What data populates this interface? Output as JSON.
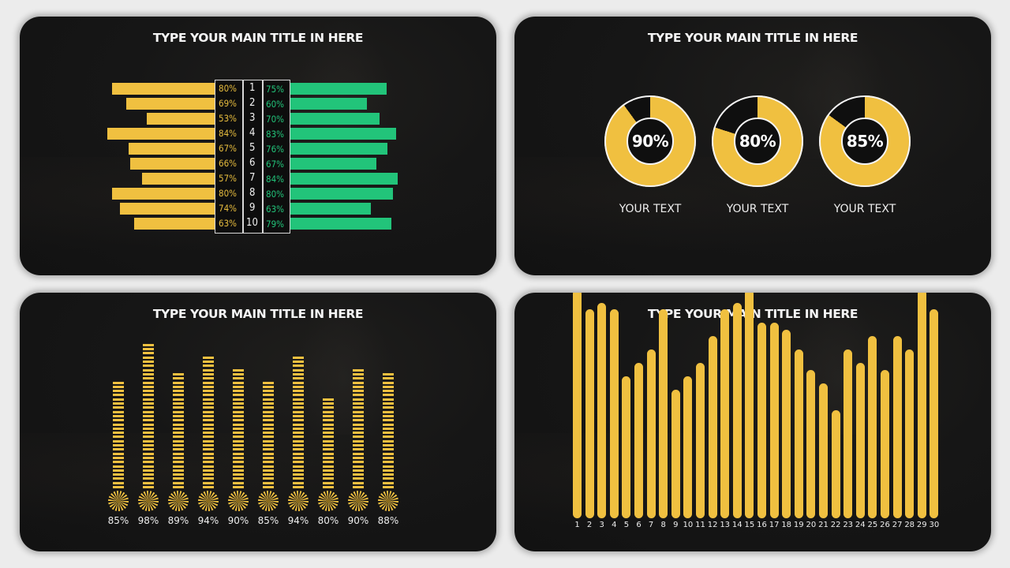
{
  "panels": [
    {
      "title": "TYPE YOUR MAIN TITLE IN HERE"
    },
    {
      "title": "TYPE YOUR MAIN TITLE IN HERE"
    },
    {
      "title": "TYPE YOUR MAIN TITLE IN HERE"
    },
    {
      "title": "TYPE YOUR MAIN TITLE IN HERE"
    }
  ],
  "colors": {
    "yellow": "#f0c040",
    "green": "#22c47a",
    "white": "#f4f4f4",
    "panel_bg": "#141414",
    "page_bg": "#ececec"
  },
  "chart_data": [
    {
      "type": "bar",
      "orientation": "horizontal-butterfly",
      "title": "TYPE YOUR MAIN TITLE IN HERE",
      "categories": [
        "1",
        "2",
        "3",
        "4",
        "5",
        "6",
        "7",
        "8",
        "9",
        "10"
      ],
      "series": [
        {
          "name": "left",
          "color": "#f0c040",
          "values": [
            80,
            69,
            53,
            84,
            67,
            66,
            57,
            80,
            74,
            63
          ],
          "labels": [
            "80%",
            "69%",
            "53%",
            "84%",
            "67%",
            "66%",
            "57%",
            "80%",
            "74%",
            "63%"
          ]
        },
        {
          "name": "right",
          "color": "#22c47a",
          "values": [
            75,
            60,
            70,
            83,
            76,
            67,
            84,
            80,
            63,
            79
          ],
          "labels": [
            "75%",
            "60%",
            "70%",
            "83%",
            "76%",
            "67%",
            "84%",
            "80%",
            "63%",
            "79%"
          ]
        }
      ]
    },
    {
      "type": "pie",
      "subtype": "donut",
      "title": "TYPE YOUR MAIN TITLE IN HERE",
      "items": [
        {
          "value": 90,
          "label": "90%",
          "caption": "YOUR TEXT"
        },
        {
          "value": 80,
          "label": "80%",
          "caption": "YOUR TEXT"
        },
        {
          "value": 85,
          "label": "85%",
          "caption": "YOUR TEXT"
        }
      ]
    },
    {
      "type": "bar",
      "subtype": "striped-thermometer",
      "title": "TYPE YOUR MAIN TITLE IN HERE",
      "values": [
        85,
        98,
        89,
        94,
        90,
        85,
        94,
        80,
        90,
        88
      ],
      "labels": [
        "85%",
        "98%",
        "89%",
        "94%",
        "90%",
        "85%",
        "94%",
        "80%",
        "90%",
        "88%"
      ]
    },
    {
      "type": "bar",
      "title": "TYPE YOUR MAIN TITLE IN HERE",
      "categories": [
        "1",
        "2",
        "3",
        "4",
        "5",
        "6",
        "7",
        "8",
        "9",
        "10",
        "11",
        "12",
        "13",
        "14",
        "15",
        "16",
        "17",
        "18",
        "19",
        "20",
        "21",
        "22",
        "23",
        "24",
        "25",
        "26",
        "27",
        "28",
        "29",
        "30"
      ],
      "values": [
        100,
        97,
        98,
        97,
        87,
        89,
        91,
        97,
        85,
        87,
        89,
        93,
        97,
        98,
        100,
        95,
        95,
        94,
        91,
        88,
        86,
        82,
        91,
        89,
        93,
        88,
        93,
        91,
        100,
        97
      ],
      "xlabel": "",
      "ylabel": "",
      "ylim": [
        0,
        100
      ]
    }
  ]
}
